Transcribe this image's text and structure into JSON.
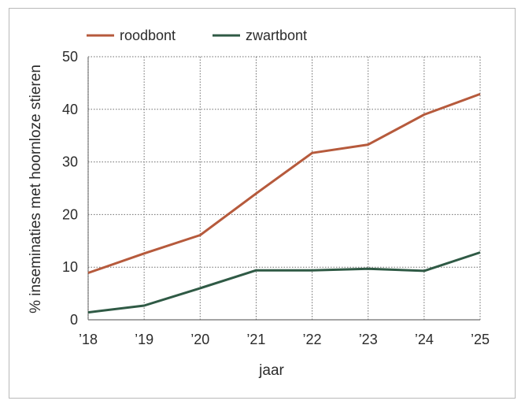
{
  "chart_data": {
    "type": "line",
    "categories": [
      "’18",
      "’19",
      "’20",
      "’21",
      "’22",
      "’23",
      "’24",
      "’25"
    ],
    "series": [
      {
        "name": "roodbont",
        "color": "#b65a3c",
        "values": [
          8.9,
          12.6,
          16.1,
          24.0,
          31.7,
          33.3,
          39.0,
          42.9
        ]
      },
      {
        "name": "zwartbont",
        "color": "#2f5a45",
        "values": [
          1.4,
          2.7,
          6.0,
          9.4,
          9.4,
          9.7,
          9.3,
          12.8
        ]
      }
    ],
    "xlabel": "jaar",
    "ylabel": "% inseminaties met hoornloze stieren",
    "ylim": [
      0,
      50
    ],
    "yticks": [
      "0",
      "10",
      "20",
      "30",
      "40",
      "50"
    ],
    "grid": "dotted horizontal",
    "legend": "top-left"
  }
}
